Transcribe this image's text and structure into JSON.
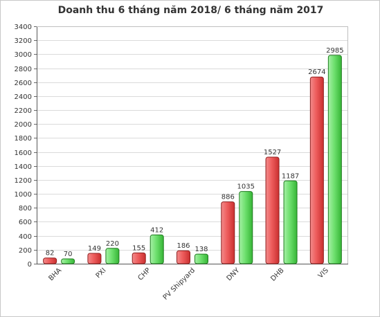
{
  "chart_data": {
    "type": "bar",
    "title": "Doanh thu 6 tháng năm 2018/ 6 tháng năm 2017",
    "xlabel": "",
    "ylabel": "",
    "categories": [
      "BHA",
      "PXI",
      "CHP",
      "PV Shipyard",
      "DNY",
      "DHB",
      "VIS"
    ],
    "series": [
      {
        "values": [
          82,
          149,
          155,
          186,
          886,
          1527,
          2674
        ],
        "color": "#e84a4a"
      },
      {
        "values": [
          70,
          220,
          412,
          138,
          1035,
          1187,
          2985
        ],
        "color": "#5cd65c"
      }
    ],
    "ylim": [
      0,
      3400
    ],
    "yticks": [
      0,
      200,
      400,
      600,
      800,
      1000,
      1200,
      1400,
      1600,
      1800,
      2000,
      2200,
      2400,
      2600,
      2800,
      3000,
      3200,
      3400
    ],
    "grid": true,
    "legend": "none",
    "data_labels": true
  }
}
